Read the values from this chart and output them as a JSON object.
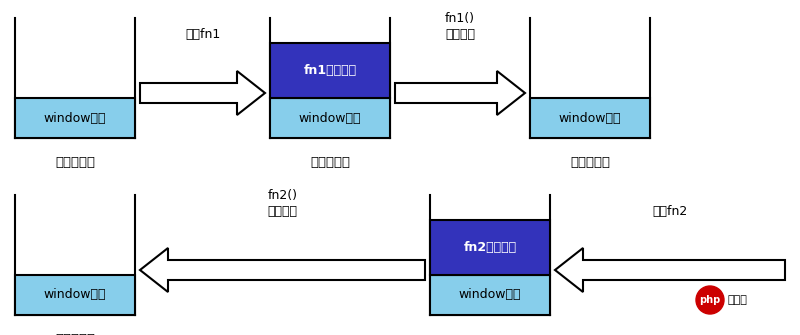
{
  "bg_color": "#ffffff",
  "light_blue": "#87CEEB",
  "dark_blue": "#3333BB",
  "box_edge": "#000000",
  "arrow_fill": "#ffffff",
  "arrow_edge": "#000000",
  "text_white": "#ffffff",
  "text_black": "#000000",
  "stack_label": "执行环境栈",
  "window_label": "window对象",
  "fn1_label": "fn1函数对象",
  "fn2_label": "fn2函数对象",
  "arrow1_label": "调用fn1",
  "arrow2_label_1": "fn1()",
  "arrow2_label_2": "执行完毕",
  "arrow3_label_1": "fn2()",
  "arrow3_label_2": "执行完毕",
  "arrow4_label": "调用fn2",
  "php_color": "#cc0000",
  "php_text": "php",
  "cn_text": "中文网",
  "figw": 8.0,
  "figh": 3.35,
  "dpi": 100,
  "stacks": [
    {
      "row": 1,
      "col": 1,
      "has_fn": false
    },
    {
      "row": 1,
      "col": 2,
      "has_fn": true
    },
    {
      "row": 1,
      "col": 3,
      "has_fn": false
    },
    {
      "row": 2,
      "col": 1,
      "has_fn": false
    },
    {
      "row": 2,
      "col": 2,
      "has_fn": true
    }
  ]
}
